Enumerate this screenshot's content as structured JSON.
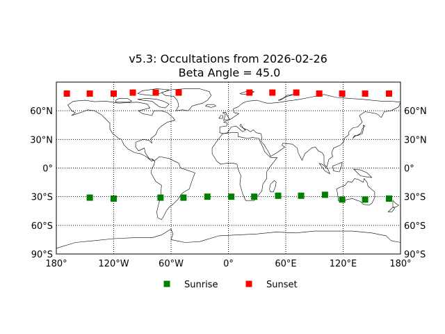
{
  "chart_data": {
    "type": "scatter",
    "title_line1": "v5.3: Occultations from 2026-02-26",
    "title_line2": "Beta Angle = 45.0",
    "xlim": [
      -180,
      180
    ],
    "ylim": [
      -90,
      90
    ],
    "grid": true,
    "legend_position": "bottom-center",
    "x_ticks": [
      {
        "value": -180,
        "label": "180°"
      },
      {
        "value": -120,
        "label": "120°W"
      },
      {
        "value": -60,
        "label": "60°W"
      },
      {
        "value": 0,
        "label": "0°"
      },
      {
        "value": 60,
        "label": "60°E"
      },
      {
        "value": 120,
        "label": "120°E"
      },
      {
        "value": 180,
        "label": "180°"
      }
    ],
    "y_ticks": [
      {
        "value": 60,
        "label": "60°N"
      },
      {
        "value": 30,
        "label": "30°N"
      },
      {
        "value": 0,
        "label": "0°"
      },
      {
        "value": -30,
        "label": "30°S"
      },
      {
        "value": -60,
        "label": "60°S"
      },
      {
        "value": -90,
        "label": "90°S"
      }
    ],
    "series": [
      {
        "name": "Sunrise",
        "color": "#008000",
        "marker": "square",
        "points": [
          {
            "lon": -145,
            "lat": -31
          },
          {
            "lon": -120,
            "lat": -32
          },
          {
            "lon": -71,
            "lat": -31
          },
          {
            "lon": -47,
            "lat": -31
          },
          {
            "lon": -22,
            "lat": -30
          },
          {
            "lon": 3,
            "lat": -30
          },
          {
            "lon": 27,
            "lat": -30
          },
          {
            "lon": 52,
            "lat": -29
          },
          {
            "lon": 76,
            "lat": -29
          },
          {
            "lon": 101,
            "lat": -28
          },
          {
            "lon": 119,
            "lat": -33
          },
          {
            "lon": 143,
            "lat": -33
          },
          {
            "lon": 168,
            "lat": -32
          }
        ]
      },
      {
        "name": "Sunset",
        "color": "#ff0000",
        "marker": "square",
        "points": [
          {
            "lon": -169,
            "lat": 78
          },
          {
            "lon": -145,
            "lat": 78
          },
          {
            "lon": -120,
            "lat": 78
          },
          {
            "lon": -100,
            "lat": 79
          },
          {
            "lon": -76,
            "lat": 79
          },
          {
            "lon": -52,
            "lat": 79
          },
          {
            "lon": 22,
            "lat": 79
          },
          {
            "lon": 46,
            "lat": 79
          },
          {
            "lon": 71,
            "lat": 79
          },
          {
            "lon": 95,
            "lat": 78
          },
          {
            "lon": 119,
            "lat": 78
          },
          {
            "lon": 143,
            "lat": 78
          },
          {
            "lon": 168,
            "lat": 78
          }
        ]
      }
    ]
  }
}
